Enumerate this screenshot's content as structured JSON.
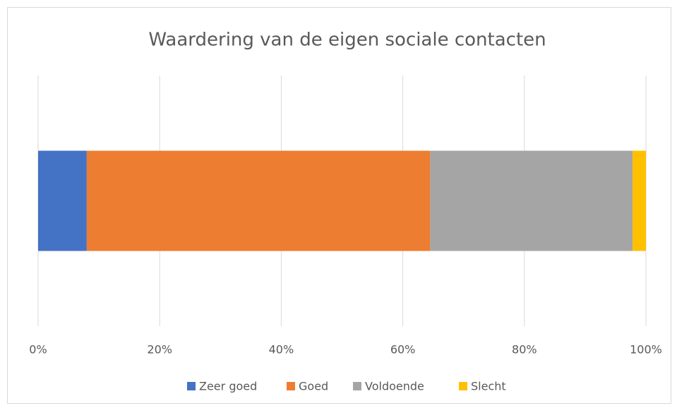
{
  "chart_data": {
    "type": "bar",
    "orientation": "horizontal",
    "stacked": true,
    "title": "Waardering van de eigen sociale contacten",
    "categories": [
      null
    ],
    "series": [
      {
        "name": "Zeer goed",
        "color": "#4472c4",
        "values": [
          8.0
        ]
      },
      {
        "name": "Goed",
        "color": "#ed7d31",
        "values": [
          56.5
        ]
      },
      {
        "name": "Voldoende",
        "color": "#a5a5a5",
        "values": [
          33.3
        ]
      },
      {
        "name": "Slecht",
        "color": "#ffc000",
        "values": [
          2.2
        ]
      }
    ],
    "xlim": [
      0,
      100
    ],
    "xticks": [
      {
        "value": 0,
        "label": "0%"
      },
      {
        "value": 20,
        "label": "20%"
      },
      {
        "value": 40,
        "label": "40%"
      },
      {
        "value": 60,
        "label": "60%"
      },
      {
        "value": 80,
        "label": "80%"
      },
      {
        "value": 100,
        "label": "100%"
      }
    ],
    "grid": true,
    "legend": "bottom"
  }
}
